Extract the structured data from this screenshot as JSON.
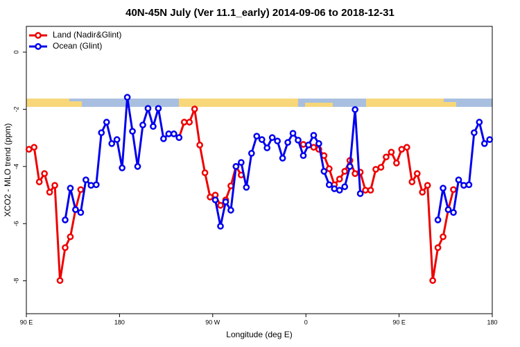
{
  "chart_data": {
    "type": "line",
    "title": "40N-45N July (Ver 11.1_early)   2014-09-06 to 2018-12-31",
    "x_label": "Longitude (deg E)",
    "y_label": "XCO2 - MLO trend (ppm)",
    "xlim": [
      90,
      540
    ],
    "ylim": [
      -9.15,
      0.9
    ],
    "xticks": [
      {
        "value": 90,
        "label": "90 E"
      },
      {
        "value": 180,
        "label": "180"
      },
      {
        "value": 270,
        "label": "90 W"
      },
      {
        "value": 360,
        "label": "0"
      },
      {
        "value": 450,
        "label": "90 E"
      },
      {
        "value": 540,
        "label": "180"
      }
    ],
    "yticks": [
      0,
      -2,
      -4,
      -6,
      -8
    ],
    "legend": "top-left",
    "series": [
      {
        "name": "Land (Nadir&Glint)",
        "color": "#ee0000",
        "x": [
          92.5,
          97.5,
          102.5,
          107.5,
          112.5,
          117.5,
          122.5,
          127.5,
          132.5,
          137.5,
          142.5,
          147.5,
          237.5,
          242.5,
          247.5,
          252.5,
          257.5,
          262.5,
          267.5,
          272.5,
          277.5,
          282.5,
          287.5,
          292.5,
          297.5,
          302.5,
          357.5,
          362.5,
          367.5,
          372.5,
          377.5,
          382.5,
          387.5,
          392.5,
          397.5,
          402.5,
          407.5,
          412.5,
          417.5,
          422.5,
          427.5,
          432.5,
          437.5,
          442.5,
          447.5,
          452.5,
          457.5,
          462.5,
          467.5,
          472.5,
          477.5,
          482.5,
          487.5,
          492.5,
          497.5,
          502.5
        ],
        "values": [
          -3.4,
          -3.33,
          -4.54,
          -4.25,
          -4.9,
          -4.66,
          -7.99,
          -6.84,
          -6.46,
          -5.51,
          -4.81,
          null,
          -2.99,
          -2.45,
          -2.45,
          -1.99,
          -3.25,
          -4.22,
          -5.07,
          -5.0,
          -5.36,
          -5.17,
          -4.68,
          -4.0,
          -4.3,
          null,
          -3.23,
          -3.25,
          -3.33,
          -3.4,
          -3.62,
          -4.08,
          -4.64,
          -4.44,
          -4.17,
          -3.79,
          -4.25,
          -4.2,
          -4.83,
          -4.83,
          -4.1,
          -4.03,
          -3.67,
          -3.5,
          -3.88,
          -3.4,
          -3.33,
          -4.54,
          -4.25,
          -4.9,
          -4.66,
          -7.99,
          -6.84,
          -6.46,
          -5.51,
          -4.81
        ]
      },
      {
        "name": "Ocean (Glint)",
        "color": "#0000ee",
        "x": [
          127.5,
          132.5,
          137.5,
          142.5,
          147.5,
          152.5,
          157.5,
          162.5,
          167.5,
          172.5,
          177.5,
          182.5,
          187.5,
          192.5,
          197.5,
          202.5,
          207.5,
          212.5,
          217.5,
          222.5,
          227.5,
          232.5,
          237.5,
          242.5,
          272.5,
          277.5,
          282.5,
          287.5,
          292.5,
          297.5,
          302.5,
          307.5,
          312.5,
          317.5,
          322.5,
          327.5,
          332.5,
          337.5,
          342.5,
          347.5,
          352.5,
          357.5,
          362.5,
          367.5,
          372.5,
          377.5,
          382.5,
          387.5,
          392.5,
          397.5,
          402.5,
          407.5,
          412.5,
          417.5,
          487.5,
          492.5,
          497.5,
          502.5,
          507.5,
          512.5,
          517.5,
          522.5,
          527.5,
          532.5,
          537.5
        ],
        "values": [
          -5.87,
          -4.76,
          -5.51,
          -5.61,
          -4.47,
          -4.66,
          -4.64,
          -2.82,
          -2.45,
          -3.2,
          -3.06,
          -4.05,
          -1.58,
          -2.77,
          -4.0,
          -2.55,
          -1.97,
          -2.6,
          -1.97,
          -3.03,
          -2.86,
          -2.86,
          -2.99,
          null,
          -5.17,
          -6.09,
          -5.24,
          -5.53,
          -4.0,
          -3.86,
          -4.73,
          -3.54,
          -2.94,
          -3.06,
          -3.35,
          -2.99,
          -3.11,
          -3.71,
          -3.16,
          -2.84,
          -3.08,
          -3.62,
          -3.25,
          -2.91,
          -3.2,
          -4.17,
          -4.64,
          -4.78,
          -4.83,
          -4.71,
          -4.0,
          -2.01,
          -4.95,
          null,
          -5.87,
          -4.76,
          -5.51,
          -5.61,
          -4.47,
          -4.66,
          -4.64,
          -2.82,
          -2.45,
          -3.2,
          -3.06
        ]
      }
    ]
  }
}
